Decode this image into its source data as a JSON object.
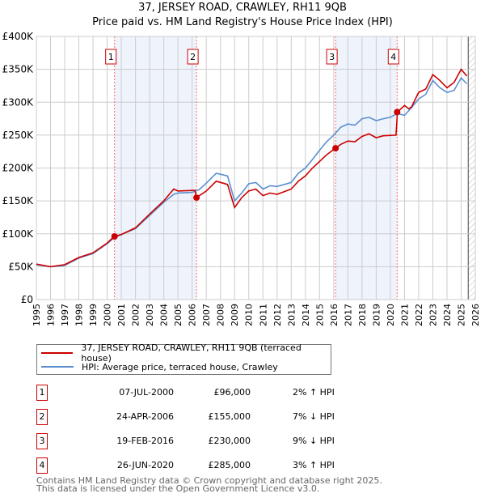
{
  "chart_data": {
    "type": "line",
    "title": "37, JERSEY ROAD, CRAWLEY, RH11 9QB",
    "subtitle": "Price paid vs. HM Land Registry's House Price Index (HPI)",
    "xlim": [
      1995,
      2026
    ],
    "ylim": [
      0,
      400000
    ],
    "x_ticks": [
      "1995",
      "1996",
      "1997",
      "1998",
      "1999",
      "2000",
      "2001",
      "2002",
      "2003",
      "2004",
      "2005",
      "2006",
      "2007",
      "2008",
      "2009",
      "2010",
      "2011",
      "2012",
      "2013",
      "2014",
      "2015",
      "2016",
      "2017",
      "2018",
      "2019",
      "2020",
      "2021",
      "2022",
      "2023",
      "2024",
      "2025",
      "2026"
    ],
    "y_ticks": [
      {
        "v": 0,
        "label": "£0"
      },
      {
        "v": 50000,
        "label": "£50K"
      },
      {
        "v": 100000,
        "label": "£100K"
      },
      {
        "v": 150000,
        "label": "£150K"
      },
      {
        "v": 200000,
        "label": "£200K"
      },
      {
        "v": 250000,
        "label": "£250K"
      },
      {
        "v": 300000,
        "label": "£300K"
      },
      {
        "v": 350000,
        "label": "£350K"
      },
      {
        "v": 400000,
        "label": "£400K"
      }
    ],
    "grid": true,
    "forecast_hatch_from": 2025.5,
    "series": [
      {
        "name": "37, JERSEY ROAD, CRAWLEY, RH11 9QB (terraced house)",
        "color": "#cc0000",
        "x": [
          1995,
          1996,
          1997,
          1998,
          1999,
          2000,
          2000.5,
          2001,
          2002,
          2003,
          2004,
          2004.7,
          2005,
          2006.2,
          2006.3,
          2007,
          2007.7,
          2008.5,
          2009,
          2009.5,
          2010,
          2010.5,
          2011,
          2011.5,
          2012,
          2013,
          2013.5,
          2014,
          2014.5,
          2015,
          2015.5,
          2016.1,
          2016.5,
          2017,
          2017.5,
          2018,
          2018.5,
          2019,
          2019.5,
          2020.4,
          2020.5,
          2021,
          2021.3,
          2021.5,
          2022,
          2022.5,
          2023,
          2023.5,
          2024,
          2024.5,
          2025,
          2025.4
        ],
        "y": [
          54,
          50,
          53,
          64,
          71,
          86,
          96,
          99,
          109,
          130,
          150,
          168,
          165,
          166,
          155,
          165,
          180,
          175,
          140,
          155,
          165,
          168,
          158,
          162,
          160,
          168,
          180,
          188,
          200,
          210,
          220,
          230,
          236,
          241,
          240,
          248,
          252,
          246,
          249,
          250,
          285,
          295,
          290,
          293,
          315,
          320,
          342,
          333,
          322,
          330,
          350,
          340
        ]
      },
      {
        "name": "HPI: Average price, terraced house, Crawley",
        "color": "#5b8fd0",
        "x": [
          1995,
          1996,
          1997,
          1998,
          1999,
          2000,
          2000.5,
          2001,
          2002,
          2003,
          2004,
          2004.7,
          2005,
          2006,
          2006.5,
          2007,
          2007.7,
          2008.5,
          2009,
          2009.5,
          2010,
          2010.5,
          2011,
          2011.5,
          2012,
          2013,
          2013.5,
          2014,
          2014.5,
          2015,
          2015.5,
          2016,
          2016.5,
          2017,
          2017.5,
          2018,
          2018.5,
          2019,
          2019.5,
          2020,
          2020.5,
          2021,
          2021.5,
          2022,
          2022.5,
          2023,
          2023.5,
          2024,
          2024.5,
          2025,
          2025.4
        ],
        "y": [
          53,
          50,
          52,
          63,
          70,
          85,
          94,
          99,
          108,
          128,
          148,
          160,
          162,
          163,
          167,
          177,
          192,
          188,
          150,
          162,
          176,
          178,
          168,
          173,
          172,
          178,
          192,
          200,
          213,
          227,
          240,
          250,
          262,
          267,
          265,
          275,
          277,
          272,
          275,
          277,
          283,
          280,
          292,
          305,
          312,
          333,
          322,
          315,
          318,
          337,
          328
        ]
      }
    ],
    "y_units": "thousands GBP in series arrays",
    "sales": [
      {
        "n": "1",
        "x": 2000.52,
        "y": 96
      },
      {
        "n": "2",
        "x": 2006.31,
        "y": 155
      },
      {
        "n": "3",
        "x": 2016.13,
        "y": 230
      },
      {
        "n": "4",
        "x": 2020.48,
        "y": 285
      }
    ],
    "colors": {
      "sale_line": "#ff6666",
      "shade": "#eef3fc",
      "grid": "#cccccc"
    }
  },
  "legend": {
    "items": [
      "37, JERSEY ROAD, CRAWLEY, RH11 9QB (terraced house)",
      "HPI: Average price, terraced house, Crawley"
    ]
  },
  "table": [
    {
      "n": "1",
      "date": "07-JUL-2000",
      "price": "£96,000",
      "delta": "2% ↑ HPI"
    },
    {
      "n": "2",
      "date": "24-APR-2006",
      "price": "£155,000",
      "delta": "7% ↓ HPI"
    },
    {
      "n": "3",
      "date": "19-FEB-2016",
      "price": "£230,000",
      "delta": "9% ↓ HPI"
    },
    {
      "n": "4",
      "date": "26-JUN-2020",
      "price": "£285,000",
      "delta": "3% ↑ HPI"
    }
  ],
  "footer": [
    "Contains HM Land Registry data © Crown copyright and database right 2025.",
    "This data is licensed under the Open Government Licence v3.0."
  ]
}
